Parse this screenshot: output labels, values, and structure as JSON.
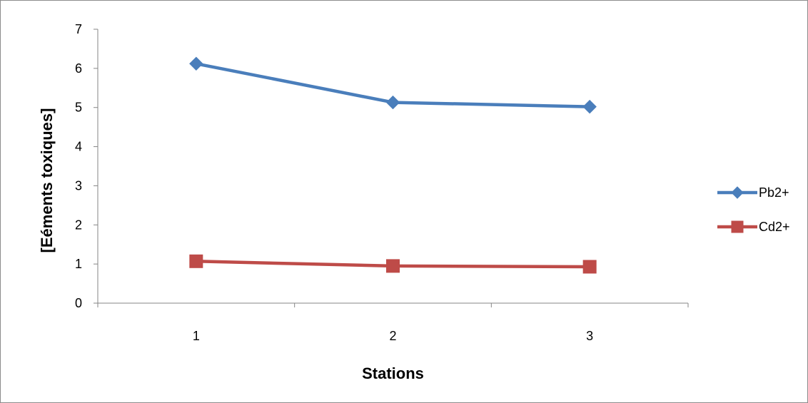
{
  "chart_data": {
    "type": "line",
    "title": "",
    "xlabel": "Stations",
    "ylabel": "[Eéments toxiques]",
    "categories": [
      "1",
      "2",
      "3"
    ],
    "ylim": [
      0,
      7
    ],
    "yticks": [
      "0",
      "1",
      "2",
      "3",
      "4",
      "5",
      "6",
      "7"
    ],
    "grid": false,
    "legend_position": "right",
    "series": [
      {
        "name": "Pb2+",
        "values": [
          6.12,
          5.13,
          5.02
        ],
        "color": "#4a7ebb",
        "marker": "diamond"
      },
      {
        "name": "Cd2+",
        "values": [
          1.07,
          0.95,
          0.93
        ],
        "color": "#be4b48",
        "marker": "square"
      }
    ]
  }
}
